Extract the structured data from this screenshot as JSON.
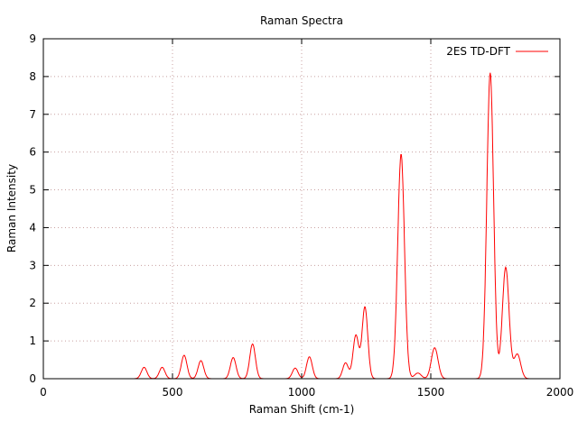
{
  "chart_data": {
    "type": "line",
    "title": "Raman Spectra",
    "xlabel": "Raman Shift (cm-1)",
    "ylabel": "Raman Intensity",
    "xlim": [
      0,
      2000
    ],
    "ylim": [
      0,
      9
    ],
    "x_ticks": [
      "0",
      "500",
      "1000",
      "1500",
      "2000"
    ],
    "y_ticks": [
      "0",
      "1",
      "2",
      "3",
      "4",
      "5",
      "6",
      "7",
      "8",
      "9"
    ],
    "grid": true,
    "legend_position": "top-right",
    "series": [
      {
        "name": "2ES TD-DFT",
        "color": "#ff0000",
        "peaks": [
          {
            "x": 390,
            "y": 0.3
          },
          {
            "x": 460,
            "y": 0.3
          },
          {
            "x": 545,
            "y": 0.62
          },
          {
            "x": 610,
            "y": 0.48
          },
          {
            "x": 735,
            "y": 0.56
          },
          {
            "x": 810,
            "y": 0.92
          },
          {
            "x": 975,
            "y": 0.28
          },
          {
            "x": 1030,
            "y": 0.58
          },
          {
            "x": 1170,
            "y": 0.42
          },
          {
            "x": 1210,
            "y": 1.15
          },
          {
            "x": 1245,
            "y": 1.9
          },
          {
            "x": 1385,
            "y": 5.95
          },
          {
            "x": 1450,
            "y": 0.15
          },
          {
            "x": 1515,
            "y": 0.82
          },
          {
            "x": 1730,
            "y": 8.1
          },
          {
            "x": 1790,
            "y": 2.95
          },
          {
            "x": 1835,
            "y": 0.65
          }
        ]
      }
    ]
  }
}
